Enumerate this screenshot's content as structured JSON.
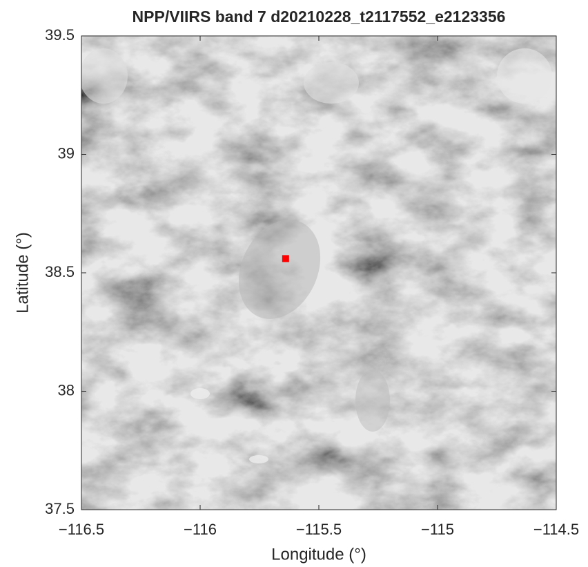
{
  "chart_data": {
    "type": "scatter",
    "title": "NPP/VIIRS band 7 d20210228_t2117552_e2123356",
    "x_label": "Longitude (°)",
    "y_label": "Latitude (°)",
    "series": [
      {
        "color": "#ff0000",
        "x": [
          -115.64
        ],
        "values": [
          38.56
        ]
      }
    ],
    "xlim": [
      -116.5,
      -114.5
    ],
    "ylim": [
      37.5,
      39.5
    ],
    "xticks": [
      {
        "value": -116.5,
        "label": "−116.5"
      },
      {
        "value": -116,
        "label": "−116"
      },
      {
        "value": -115.5,
        "label": "−115.5"
      },
      {
        "value": -115,
        "label": "−115"
      },
      {
        "value": -114.5,
        "label": "−114.5"
      }
    ],
    "yticks": [
      37.5,
      38,
      38.5,
      39,
      39.5
    ]
  }
}
